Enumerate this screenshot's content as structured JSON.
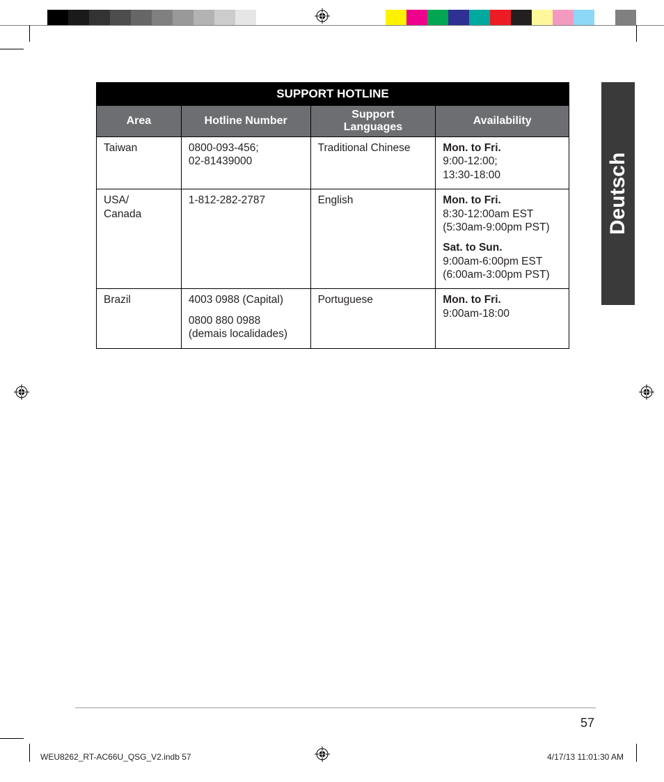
{
  "printer_marks": {
    "gray_ramp": [
      "#000000",
      "#1a1a1a",
      "#333333",
      "#4d4d4d",
      "#666666",
      "#808080",
      "#999999",
      "#b3b3b3",
      "#cccccc",
      "#e6e6e6",
      "#ffffff"
    ],
    "color_blocks": [
      "#fff200",
      "#ec008c",
      "#00a651",
      "#2e3192",
      "#00a99d",
      "#ed1c24",
      "#231f20",
      "#fff799",
      "#f49ac1",
      "#8dd7f7"
    ],
    "tail_gray": "#808080"
  },
  "language_tab": "Deutsch",
  "table": {
    "title": "SUPPORT HOTLINE",
    "columns": [
      "Area",
      "Hotline Number",
      "Support Languages",
      "Availability"
    ],
    "rows": [
      {
        "area": "Taiwan",
        "hotline": "0800-093-456;\n02-81439000",
        "languages": "Traditional Chinese",
        "availability": [
          {
            "bold": "Mon. to Fri."
          },
          {
            "text": "9:00-12:00;"
          },
          {
            "text": "13:30-18:00"
          }
        ]
      },
      {
        "area": "USA/\nCanada",
        "hotline": "1-812-282-2787",
        "languages": "English",
        "availability": [
          {
            "bold": "Mon. to Fri."
          },
          {
            "text": "8:30-12:00am EST"
          },
          {
            "text": "(5:30am-9:00pm PST)"
          },
          {
            "gap": true
          },
          {
            "bold": "Sat. to Sun."
          },
          {
            "text": "9:00am-6:00pm EST"
          },
          {
            "text": "(6:00am-3:00pm PST)"
          }
        ]
      },
      {
        "area": "Brazil",
        "hotline": "4003 0988 (Capital)\n\n0800 880 0988\n(demais localidades)",
        "languages": "Portuguese",
        "availability": [
          {
            "bold": "Mon. to Fri."
          },
          {
            "text": "9:00am-18:00"
          }
        ]
      }
    ]
  },
  "page_number": "57",
  "slug": {
    "file": "WEU8262_RT-AC66U_QSG_V2.indb   57",
    "datetime": "4/17/13   11:01:30 AM"
  }
}
